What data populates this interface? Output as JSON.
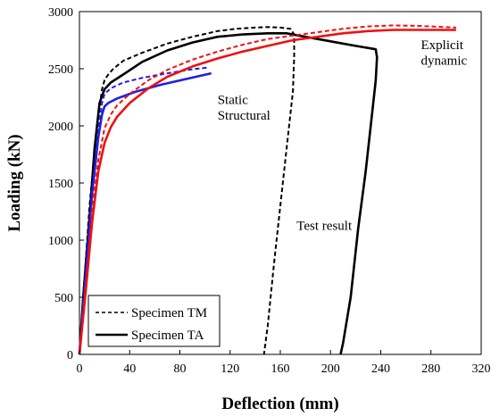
{
  "chart_data": {
    "type": "line",
    "xlabel": "Deflection (mm)",
    "ylabel": "Loading (kN)",
    "xlim": [
      0,
      320
    ],
    "ylim": [
      0,
      3000
    ],
    "x_ticks": [
      0,
      40,
      80,
      120,
      160,
      200,
      240,
      280,
      320
    ],
    "y_ticks": [
      0,
      500,
      1000,
      1500,
      2000,
      2500,
      3000
    ],
    "grid": false,
    "legend": {
      "placement": "bottom-left",
      "entries": [
        {
          "label": "Specimen TM",
          "style": "dashed",
          "color": "#000000"
        },
        {
          "label": "Specimen TA",
          "style": "solid",
          "color": "#000000"
        }
      ]
    },
    "annotations": [
      {
        "text": "Explicit",
        "x": 272,
        "y": 2670
      },
      {
        "text": "dynamic",
        "x": 272,
        "y": 2535
      },
      {
        "text": "Static",
        "x": 110,
        "y": 2190
      },
      {
        "text": "Structural",
        "x": 110,
        "y": 2055
      },
      {
        "text": "Test result",
        "x": 173,
        "y": 1090
      }
    ],
    "series": [
      {
        "group": "Test result",
        "specimen": "TM",
        "color": "#000000",
        "style": "dashed",
        "x": [
          0,
          3,
          8,
          14,
          18,
          20,
          23,
          27,
          35,
          50,
          70,
          90,
          110,
          125,
          140,
          150,
          160,
          168,
          171,
          171,
          170,
          165,
          160,
          155,
          150,
          147
        ],
        "y": [
          0,
          500,
          1300,
          2000,
          2320,
          2400,
          2450,
          2500,
          2570,
          2640,
          2720,
          2780,
          2830,
          2850,
          2860,
          2865,
          2860,
          2850,
          2800,
          2600,
          2300,
          1800,
          1300,
          800,
          250,
          0
        ]
      },
      {
        "group": "Test result",
        "specimen": "TA",
        "color": "#000000",
        "style": "solid",
        "x": [
          0,
          3,
          8,
          12,
          16,
          20,
          25,
          35,
          50,
          70,
          90,
          110,
          130,
          150,
          165,
          180,
          200,
          220,
          236,
          237,
          236,
          233,
          228,
          222,
          216,
          210,
          208
        ],
        "y": [
          0,
          500,
          1200,
          1800,
          2200,
          2320,
          2380,
          2450,
          2560,
          2660,
          2730,
          2780,
          2800,
          2810,
          2810,
          2780,
          2740,
          2700,
          2670,
          2600,
          2400,
          2100,
          1600,
          1100,
          500,
          100,
          0
        ]
      },
      {
        "group": "Static Structural",
        "specimen": "TM",
        "color": "#1f1fe0",
        "style": "dashed",
        "x": [
          0,
          5,
          10,
          15,
          18,
          20,
          25,
          35,
          50,
          70,
          90,
          102
        ],
        "y": [
          0,
          700,
          1400,
          1950,
          2200,
          2280,
          2330,
          2380,
          2420,
          2460,
          2495,
          2510
        ]
      },
      {
        "group": "Static Structural",
        "specimen": "TA",
        "color": "#1f1fe0",
        "style": "solid",
        "x": [
          0,
          5,
          10,
          15,
          18,
          20,
          23,
          30,
          45,
          65,
          85,
          105
        ],
        "y": [
          0,
          700,
          1400,
          1900,
          2100,
          2170,
          2200,
          2240,
          2300,
          2360,
          2410,
          2460
        ]
      },
      {
        "group": "Explicit dynamic",
        "specimen": "TM",
        "color": "#ee1111",
        "style": "dashed",
        "x": [
          0,
          5,
          10,
          15,
          20,
          25,
          30,
          40,
          55,
          70,
          90,
          110,
          130,
          150,
          170,
          190,
          210,
          230,
          250,
          270,
          290,
          300
        ],
        "y": [
          0,
          600,
          1250,
          1700,
          1980,
          2100,
          2180,
          2280,
          2400,
          2490,
          2580,
          2650,
          2710,
          2760,
          2790,
          2820,
          2850,
          2870,
          2880,
          2875,
          2865,
          2860
        ]
      },
      {
        "group": "Explicit dynamic",
        "specimen": "TA",
        "color": "#ee1111",
        "style": "solid",
        "x": [
          0,
          5,
          10,
          15,
          20,
          25,
          30,
          40,
          55,
          70,
          90,
          110,
          130,
          150,
          170,
          190,
          210,
          230,
          250,
          270,
          290,
          300
        ],
        "y": [
          0,
          550,
          1150,
          1600,
          1850,
          1990,
          2080,
          2200,
          2330,
          2430,
          2520,
          2590,
          2650,
          2700,
          2750,
          2780,
          2810,
          2830,
          2840,
          2840,
          2840,
          2840
        ]
      }
    ]
  }
}
